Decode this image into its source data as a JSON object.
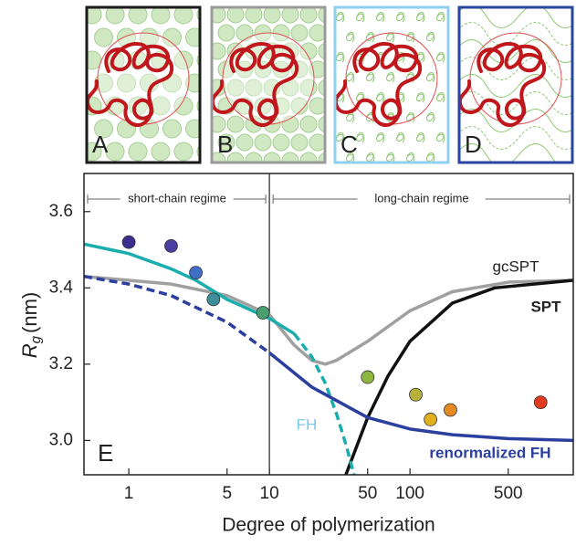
{
  "panels": [
    {
      "letter": "A",
      "border_color": "#1a1a1a"
    },
    {
      "letter": "B",
      "border_color": "#9a9a9a"
    },
    {
      "letter": "C",
      "border_color": "#8fd0f0"
    },
    {
      "letter": "D",
      "border_color": "#2a45a0"
    }
  ],
  "chart_data": {
    "type": "line",
    "panel_label": "E",
    "x_label": "Degree of polymerization",
    "y_label": {
      "symbol": "R",
      "subscript": "g",
      "unit": "(nm)"
    },
    "log_x": true,
    "xlim": [
      0.48,
      1450
    ],
    "ylim": [
      2.91,
      3.7
    ],
    "xticks": [
      1,
      5,
      10,
      50,
      100,
      500
    ],
    "yticks": [
      {
        "value": 3,
        "label": "3.0"
      },
      3.2,
      3.4,
      3.6
    ],
    "regime_boundary": 10,
    "regimes": [
      "short-chain regime",
      "long-chain regime"
    ],
    "series": [
      {
        "name": "gcSPT",
        "color": "#a0a0a0",
        "dashed": false,
        "x": [
          0.48,
          1,
          2,
          5,
          10,
          15,
          20,
          25,
          30,
          50,
          100,
          200,
          500,
          1450
        ],
        "values": [
          3.43,
          3.42,
          3.41,
          3.38,
          3.33,
          3.25,
          3.21,
          3.2,
          3.21,
          3.26,
          3.34,
          3.39,
          3.415,
          3.42
        ]
      },
      {
        "name": "SPT",
        "color": "#111111",
        "dashed": false,
        "x": [
          35,
          50,
          70,
          100,
          200,
          400,
          1450
        ],
        "values": [
          2.91,
          3.06,
          3.17,
          3.26,
          3.36,
          3.4,
          3.42
        ]
      },
      {
        "name": "FH",
        "color": "#1aadad",
        "dashed": false,
        "x": [
          0.48,
          1,
          2,
          3,
          5,
          10,
          15
        ],
        "values": [
          3.515,
          3.49,
          3.45,
          3.42,
          3.37,
          3.32,
          3.28
        ]
      },
      {
        "color": "#1aadad",
        "dashed": true,
        "x": [
          15,
          20,
          25,
          30,
          35,
          40
        ],
        "values": [
          3.28,
          3.22,
          3.15,
          3.07,
          2.99,
          2.91
        ]
      },
      {
        "name": "renormalized FH",
        "color": "#2a3f9e",
        "dashed": false,
        "x": [
          10,
          20,
          50,
          100,
          200,
          500,
          1450
        ],
        "values": [
          3.23,
          3.14,
          3.06,
          3.03,
          3.015,
          3.005,
          3.0
        ]
      },
      {
        "color": "#2a3f9e",
        "dashed": true,
        "x": [
          0.48,
          1,
          2,
          5,
          10
        ],
        "values": [
          3.43,
          3.41,
          3.38,
          3.31,
          3.23
        ]
      }
    ],
    "points": {
      "x": [
        1,
        2,
        3,
        4,
        9,
        50,
        110,
        140,
        194,
        850
      ],
      "values": [
        3.52,
        3.51,
        3.44,
        3.37,
        3.335,
        3.166,
        3.12,
        3.055,
        3.08,
        3.1
      ],
      "colors": [
        "#3b2e8e",
        "#4a3fa0",
        "#3f6fc4",
        "#3d8e9a",
        "#4aa070",
        "#8db640",
        "#b9b23a",
        "#e0b020",
        "#e58a22",
        "#e03b20"
      ]
    }
  }
}
